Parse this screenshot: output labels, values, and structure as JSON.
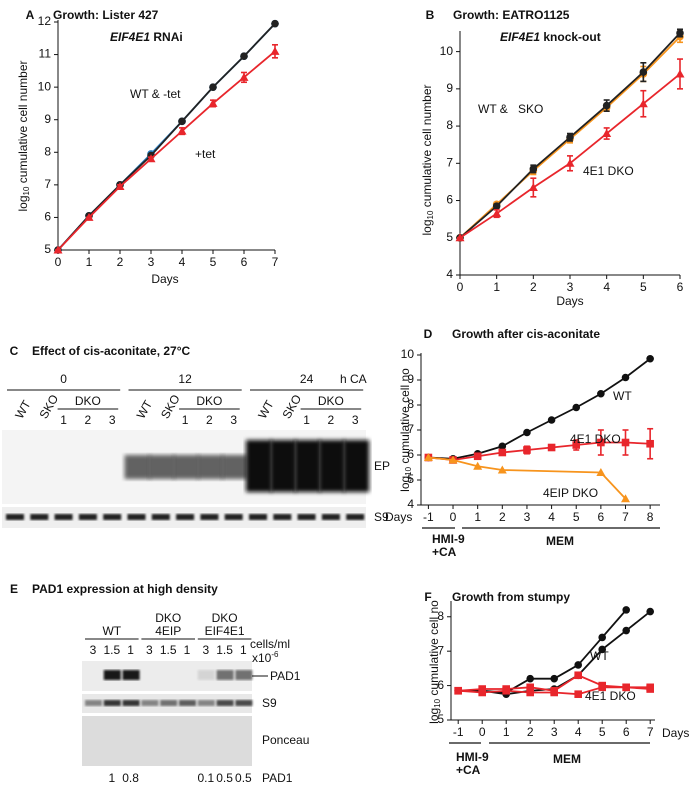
{
  "chart_data": [
    {
      "type": "line",
      "panel": "A",
      "title": "Growth: Lister 427",
      "subtitle": [
        "EIF4E1",
        "RNAi"
      ],
      "xlabel": "Days",
      "ylabel": [
        "log",
        "10",
        "cumulative cell number"
      ],
      "xlim": [
        0,
        7
      ],
      "ylim": [
        5,
        12
      ],
      "xticks": [
        0,
        1,
        2,
        3,
        4,
        5,
        6,
        7
      ],
      "yticks": [
        5,
        6,
        7,
        8,
        9,
        10,
        11,
        12
      ],
      "series": [
        {
          "color": "#2a7fc0",
          "marker": "circle",
          "x": [
            0,
            1,
            2,
            3,
            4,
            5,
            6,
            7
          ],
          "values": [
            5,
            6.05,
            7,
            7.95,
            8.95,
            10,
            10.95,
            11.95
          ]
        },
        {
          "color": "#222222",
          "marker": "circle",
          "x": [
            0,
            1,
            2,
            3,
            4,
            5,
            6,
            7
          ],
          "values": [
            5,
            6.05,
            7,
            7.9,
            8.95,
            10,
            10.95,
            11.95
          ]
        },
        {
          "color": "#e8262c",
          "marker": "triangle",
          "x": [
            0,
            1,
            2,
            3,
            4,
            5,
            6,
            7
          ],
          "values": [
            5,
            6,
            6.95,
            7.8,
            8.65,
            9.5,
            10.3,
            11.1
          ],
          "errors": [
            0,
            0,
            0.05,
            0.05,
            0.1,
            0.1,
            0.15,
            0.2
          ]
        }
      ],
      "annotations": [
        {
          "text": "WT & -tet",
          "color": "#222222"
        },
        {
          "text": "+tet",
          "color": "#e8262c"
        }
      ]
    },
    {
      "type": "line",
      "panel": "B",
      "title": "Growth: EATRO1125",
      "subtitle": [
        "EIF4E1",
        "knock-out"
      ],
      "xlabel": "Days",
      "ylabel": [
        "log",
        "10",
        "cumulative cell number"
      ],
      "xlim": [
        0,
        6
      ],
      "ylim": [
        4,
        10.5
      ],
      "xticks": [
        0,
        1,
        2,
        3,
        4,
        5,
        6
      ],
      "yticks": [
        4,
        5,
        6,
        7,
        8,
        9,
        10
      ],
      "series": [
        {
          "color": "#f7941d",
          "marker": "circle",
          "x": [
            0,
            1,
            2,
            3,
            4,
            5,
            6
          ],
          "values": [
            5,
            5.9,
            6.8,
            7.65,
            8.5,
            9.4,
            10.4
          ],
          "errors": [
            0,
            0.05,
            0.1,
            0.1,
            0.1,
            0.2,
            0.15
          ]
        },
        {
          "color": "#222222",
          "marker": "circle",
          "x": [
            0,
            1,
            2,
            3,
            4,
            5,
            6
          ],
          "values": [
            5,
            5.85,
            6.85,
            7.7,
            8.55,
            9.45,
            10.5
          ],
          "errors": [
            0,
            0.05,
            0.1,
            0.1,
            0.15,
            0.25,
            0.1
          ]
        },
        {
          "color": "#e8262c",
          "marker": "triangle",
          "x": [
            0,
            1,
            2,
            3,
            4,
            5,
            6
          ],
          "values": [
            5,
            5.65,
            6.35,
            7,
            7.8,
            8.6,
            9.4
          ],
          "errors": [
            0,
            0.1,
            0.25,
            0.2,
            0.15,
            0.35,
            0.4
          ]
        }
      ],
      "annotations": [
        {
          "text": "WT &",
          "color": "#222222"
        },
        {
          "text": "SKO",
          "color": "#f7941d"
        },
        {
          "text": "4E1 DKO",
          "color": "#e8262c"
        }
      ]
    },
    {
      "type": "line",
      "panel": "D",
      "title": "Growth after cis-aconitate",
      "xlabel": "Days",
      "ylabel": [
        "log",
        "10",
        "cumulative cell no"
      ],
      "xlim": [
        -1.3,
        8.4
      ],
      "ylim": [
        4,
        10
      ],
      "xticks": [
        -1,
        0,
        1,
        2,
        3,
        4,
        5,
        6,
        7,
        8
      ],
      "yticks": [
        4,
        5,
        6,
        7,
        8,
        9,
        10
      ],
      "series": [
        {
          "color": "#111111",
          "marker": "circle",
          "x": [
            -1,
            0,
            1,
            2,
            3,
            4,
            5,
            6,
            7,
            8
          ],
          "values": [
            5.9,
            5.85,
            6.05,
            6.35,
            6.9,
            7.4,
            7.9,
            8.45,
            9.1,
            9.85
          ]
        },
        {
          "color": "#e8262c",
          "marker": "square",
          "x": [
            -1,
            0,
            1,
            2,
            3,
            4,
            5,
            6,
            7,
            8
          ],
          "values": [
            5.9,
            5.8,
            5.95,
            6.1,
            6.2,
            6.3,
            6.4,
            6.5,
            6.5,
            6.45
          ],
          "errors": [
            0,
            0,
            0,
            0.1,
            0.15,
            0.1,
            0.2,
            0.5,
            0.5,
            0.6
          ]
        },
        {
          "color": "#f7941d",
          "marker": "triangle",
          "x": [
            -1,
            0,
            1,
            2,
            6,
            7
          ],
          "values": [
            5.9,
            5.8,
            5.55,
            5.4,
            5.3,
            4.25
          ]
        }
      ],
      "annotations": [
        {
          "text": "WT",
          "color": "#111111"
        },
        {
          "text": "4E1 DKO",
          "color": "#e8262c"
        },
        {
          "text": "4EIP DKO",
          "color": "#f7941d"
        }
      ],
      "conditions": [
        {
          "lines": [
            "HMI-9",
            "+CA"
          ]
        },
        {
          "lines": [
            "MEM"
          ]
        }
      ]
    },
    {
      "type": "line",
      "panel": "F",
      "title": "Growth from stumpy",
      "xlabel": "Days",
      "ylabel": [
        "log",
        "10",
        "cumulative cell no"
      ],
      "xlim": [
        -1.3,
        7.2
      ],
      "ylim": [
        5,
        8.4
      ],
      "xticks": [
        -1,
        0,
        1,
        2,
        3,
        4,
        5,
        6,
        7
      ],
      "yticks": [
        5,
        6,
        7,
        8
      ],
      "series": [
        {
          "color": "#111111",
          "marker": "circle",
          "x": [
            -1,
            0,
            1,
            2,
            3,
            4,
            5,
            6
          ],
          "values": [
            5.85,
            5.85,
            5.8,
            6.2,
            6.2,
            6.6,
            7.4,
            8.2
          ]
        },
        {
          "color": "#111111",
          "marker": "circle",
          "x": [
            -1,
            0,
            1,
            2,
            3,
            4,
            5,
            6,
            7
          ],
          "values": [
            5.85,
            5.85,
            5.75,
            5.85,
            5.9,
            6.3,
            7.05,
            7.6,
            8.15
          ]
        },
        {
          "color": "#e8262c",
          "marker": "square",
          "x": [
            -1,
            0,
            1,
            2,
            3,
            4,
            5,
            6,
            7
          ],
          "values": [
            5.85,
            5.9,
            5.9,
            5.95,
            5.85,
            6.3,
            6.0,
            5.95,
            5.95
          ]
        },
        {
          "color": "#e8262c",
          "marker": "square",
          "x": [
            -1,
            0,
            1,
            2,
            3,
            4,
            5,
            6,
            7
          ],
          "values": [
            5.85,
            5.8,
            5.85,
            5.8,
            5.8,
            5.75,
            5.95,
            5.95,
            5.9
          ]
        }
      ],
      "annotations": [
        {
          "text": "WT",
          "color": "#111111"
        },
        {
          "text": "4E1 DKO",
          "color": "#e8262c"
        }
      ],
      "conditions": [
        {
          "lines": [
            "HMI-9",
            "+CA"
          ]
        },
        {
          "lines": [
            "MEM"
          ]
        }
      ]
    }
  ],
  "blots": [
    {
      "panel": "C",
      "title": "Effect of cis-aconitate, 27°C",
      "timepoints": [
        "0",
        "12",
        "24"
      ],
      "time_unit": "h CA",
      "lanes": [
        "WT",
        "SKO",
        "DKO"
      ],
      "clones": [
        "1",
        "2",
        "3"
      ],
      "bands": [
        "EP",
        "S9"
      ]
    },
    {
      "panel": "E",
      "title": "PAD1 expression at high density",
      "strains": [
        [
          "WT"
        ],
        [
          "DKO",
          "4EIP"
        ],
        [
          "DKO",
          "EIF4E1"
        ]
      ],
      "densities": [
        "3",
        "1.5",
        "1"
      ],
      "density_unit": [
        "cells/ml",
        "x10",
        "-6"
      ],
      "bands": [
        "PAD1",
        "S9",
        "Ponceau"
      ],
      "quantification": [
        null,
        1,
        0.8,
        null,
        null,
        null,
        0.1,
        0.5,
        0.5
      ],
      "quantification_label": "PAD1"
    }
  ]
}
